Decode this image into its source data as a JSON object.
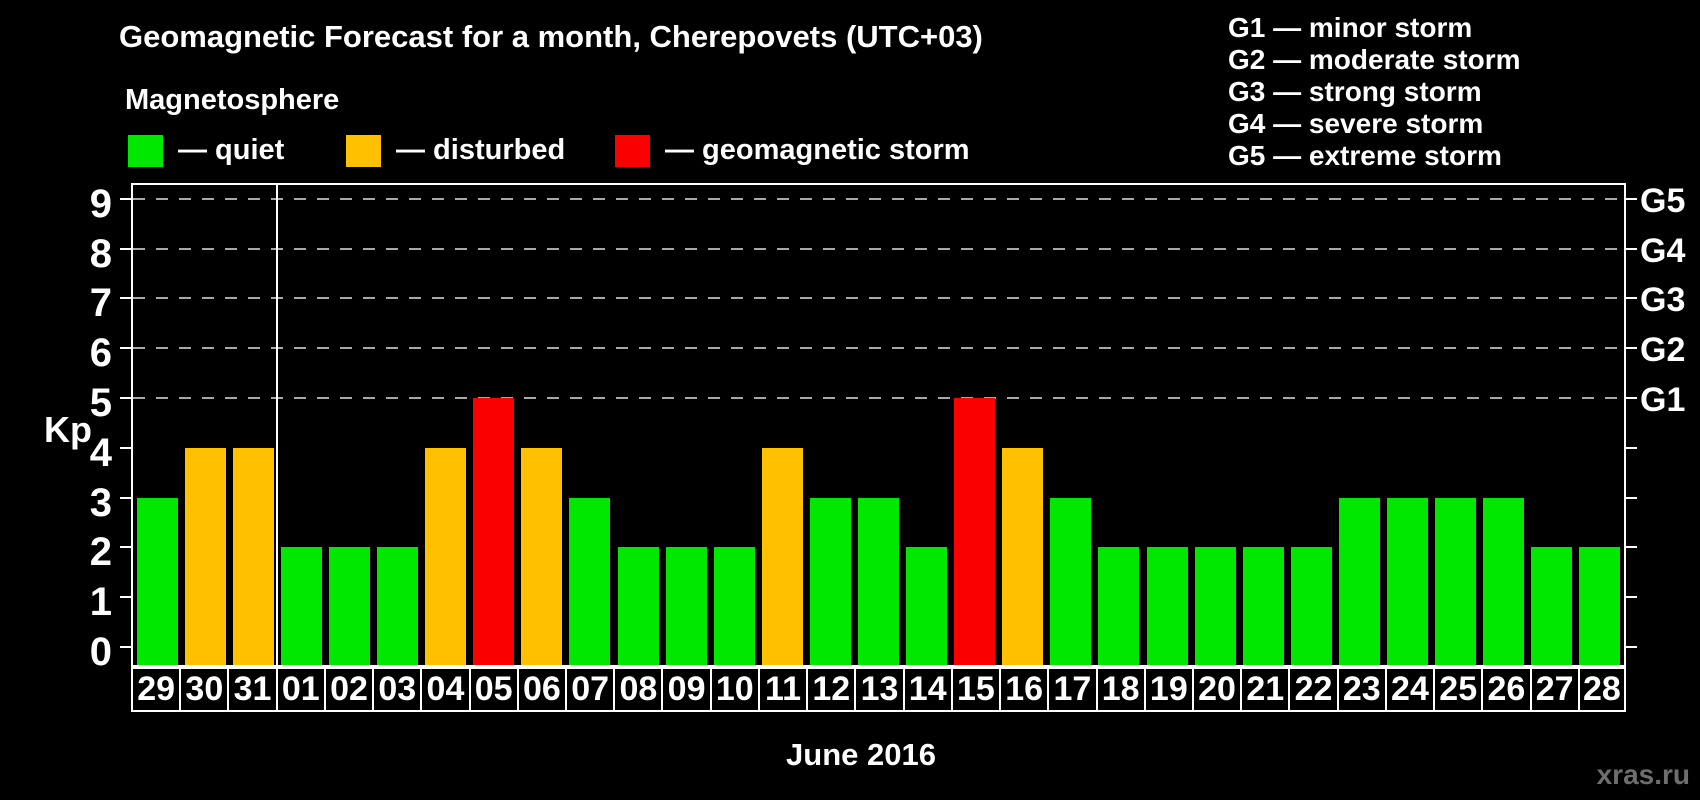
{
  "title": "Geomagnetic Forecast for a month, Cherepovets (UTC+03)",
  "legend": {
    "title": "Magnetosphere",
    "items": [
      {
        "status": "quiet",
        "label": "— quiet",
        "color": "#00e800"
      },
      {
        "status": "disturbed",
        "label": "— disturbed",
        "color": "#ffc000"
      },
      {
        "status": "storm",
        "label": "— geomagnetic storm",
        "color": "#fa0000"
      }
    ]
  },
  "storm_scale": {
    "items": [
      {
        "level": "G1",
        "label": "G1 — minor storm"
      },
      {
        "level": "G2",
        "label": "G2 — moderate storm"
      },
      {
        "level": "G3",
        "label": "G3 — strong storm"
      },
      {
        "level": "G4",
        "label": "G4 — severe storm"
      },
      {
        "level": "G5",
        "label": "G5 — extreme storm"
      }
    ]
  },
  "watermark": "xras.ru",
  "colors": {
    "background": "#000000",
    "text": "#ffffff",
    "grid": "#a8a8a8",
    "axis": "#ffffff",
    "watermark": "#6e6e6e"
  },
  "chart_data": {
    "type": "bar",
    "title": "Geomagnetic Forecast for a month, Cherepovets (UTC+03)",
    "xlabel": "June 2016",
    "ylabel": "Kp",
    "ylim": [
      0,
      9
    ],
    "yticks": [
      0,
      1,
      2,
      3,
      4,
      5,
      6,
      7,
      8,
      9
    ],
    "grid": "horizontal dashed lines at Kp 5-9 (storm levels G1-G5)",
    "legend_position": "top",
    "right_axis": [
      {
        "kp": 5,
        "label": "G1"
      },
      {
        "kp": 6,
        "label": "G2"
      },
      {
        "kp": 7,
        "label": "G3"
      },
      {
        "kp": 8,
        "label": "G4"
      },
      {
        "kp": 9,
        "label": "G5"
      }
    ],
    "categories": [
      "29",
      "30",
      "31",
      "01",
      "02",
      "03",
      "04",
      "05",
      "06",
      "07",
      "08",
      "09",
      "10",
      "11",
      "12",
      "13",
      "14",
      "15",
      "16",
      "17",
      "18",
      "19",
      "20",
      "21",
      "22",
      "23",
      "24",
      "25",
      "26",
      "27",
      "28"
    ],
    "values": [
      3,
      4,
      4,
      2,
      2,
      2,
      4,
      5,
      4,
      3,
      2,
      2,
      2,
      4,
      3,
      3,
      2,
      5,
      4,
      3,
      2,
      2,
      2,
      2,
      2,
      3,
      3,
      3,
      3,
      2,
      2
    ],
    "statuses": [
      "quiet",
      "disturbed",
      "disturbed",
      "quiet",
      "quiet",
      "quiet",
      "disturbed",
      "storm",
      "disturbed",
      "quiet",
      "quiet",
      "quiet",
      "quiet",
      "disturbed",
      "quiet",
      "quiet",
      "quiet",
      "storm",
      "disturbed",
      "quiet",
      "quiet",
      "quiet",
      "quiet",
      "quiet",
      "quiet",
      "quiet",
      "quiet",
      "quiet",
      "quiet",
      "quiet",
      "quiet"
    ],
    "month_separator_after_index": 2,
    "colors": {
      "quiet": "#00e800",
      "disturbed": "#ffc000",
      "storm": "#fa0000"
    }
  }
}
